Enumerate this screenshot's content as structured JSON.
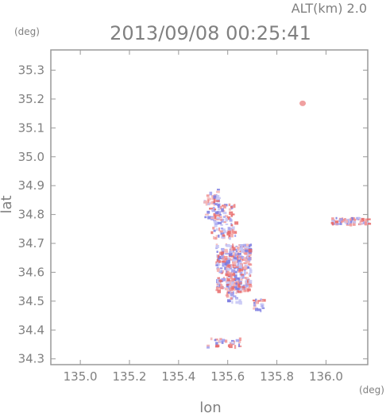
{
  "header": {
    "alt_label": "ALT(km) 2.0",
    "timestamp": "2013/09/08 00:25:41",
    "y_unit": "(deg)",
    "x_unit": "(deg)"
  },
  "chart_data": {
    "type": "scatter",
    "xlabel": "lon",
    "ylabel": "lat",
    "xlim": [
      134.88,
      136.17
    ],
    "ylim": [
      34.28,
      35.37
    ],
    "x_ticks": [
      135.0,
      135.2,
      135.4,
      135.6,
      135.8,
      136.0
    ],
    "x_tick_labels": [
      "135.0",
      "135.2",
      "135.4",
      "135.6",
      "135.8",
      "136.0"
    ],
    "y_ticks": [
      34.3,
      34.4,
      34.5,
      34.6,
      34.7,
      34.8,
      34.9,
      35.0,
      35.1,
      35.2,
      35.3
    ],
    "y_tick_labels": [
      "34.3",
      "34.4",
      "34.5",
      "34.6",
      "34.7",
      "34.8",
      "34.9",
      "35.0",
      "35.1",
      "35.2",
      "35.3"
    ],
    "grid": false,
    "colors": {
      "positive": "#e86a6a",
      "negative": "#7b7be0",
      "frame": "#999999",
      "text": "#808080"
    }
  }
}
